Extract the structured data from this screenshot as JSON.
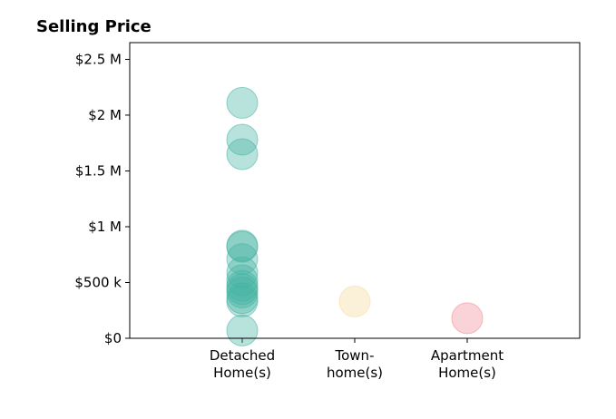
{
  "chart_data": {
    "type": "scatter",
    "title": "Selling Price",
    "xlabel": "",
    "ylabel": "",
    "categories": [
      "Detached\nHome(s)",
      "Town-\nhome(s)",
      "Apartment\nHome(s)"
    ],
    "ylim": [
      0,
      2650000
    ],
    "xlim": [
      -1,
      3
    ],
    "yticks": [
      {
        "value": 0,
        "label": "$0"
      },
      {
        "value": 500000,
        "label": "$500 k"
      },
      {
        "value": 1000000,
        "label": "$1 M"
      },
      {
        "value": 1500000,
        "label": "$1.5 M"
      },
      {
        "value": 2000000,
        "label": "$2 M"
      },
      {
        "value": 2500000,
        "label": "$2.5 M"
      }
    ],
    "grid": false,
    "legend": "none",
    "series": [
      {
        "category": "Detached\nHome(s)",
        "color": "#45b3a3",
        "values": [
          2110000,
          1780000,
          1650000,
          830000,
          820000,
          710000,
          590000,
          520000,
          470000,
          440000,
          410000,
          360000,
          330000,
          70000
        ]
      },
      {
        "category": "Town-\nhome(s)",
        "color": "#f5d99a",
        "values": [
          330000
        ]
      },
      {
        "category": "Apartment\nHome(s)",
        "color": "#ee8b96",
        "values": [
          180000
        ]
      }
    ]
  }
}
